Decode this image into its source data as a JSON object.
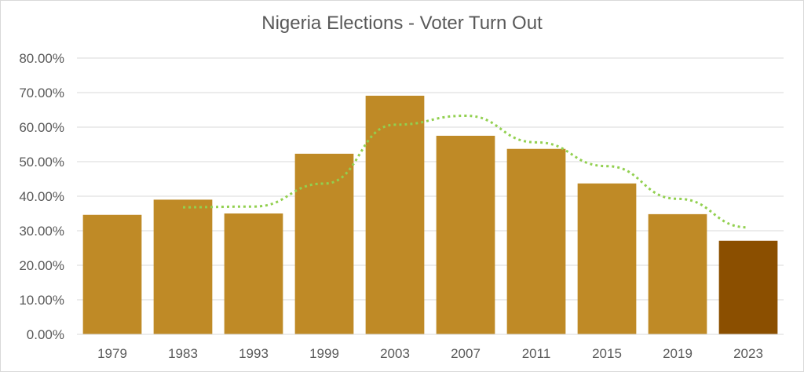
{
  "chart_data": {
    "type": "bar",
    "title": "Nigeria Elections - Voter Turn Out",
    "categories": [
      "1979",
      "1983",
      "1993",
      "1999",
      "2003",
      "2007",
      "2011",
      "2015",
      "2019",
      "2023"
    ],
    "series": [
      {
        "values": [
          34.6,
          39.0,
          35.0,
          52.3,
          69.1,
          57.5,
          53.7,
          43.7,
          34.8,
          27.1
        ],
        "color": "#bf8a26",
        "highlight": {
          "category": "2023",
          "color": "#8b4f00"
        }
      }
    ],
    "trendline": {
      "type": "moving-average",
      "period": 2,
      "style": "dotted",
      "color": "#92d050",
      "values": [
        null,
        36.8,
        37.0,
        43.65,
        60.7,
        63.3,
        55.6,
        48.7,
        39.25,
        30.95
      ]
    },
    "yticks": [
      "0.00%",
      "10.00%",
      "20.00%",
      "30.00%",
      "40.00%",
      "50.00%",
      "60.00%",
      "70.00%",
      "80.00%"
    ],
    "ylim": [
      0,
      80
    ],
    "grid": true,
    "legend": "none",
    "xlabel": "",
    "ylabel": ""
  }
}
